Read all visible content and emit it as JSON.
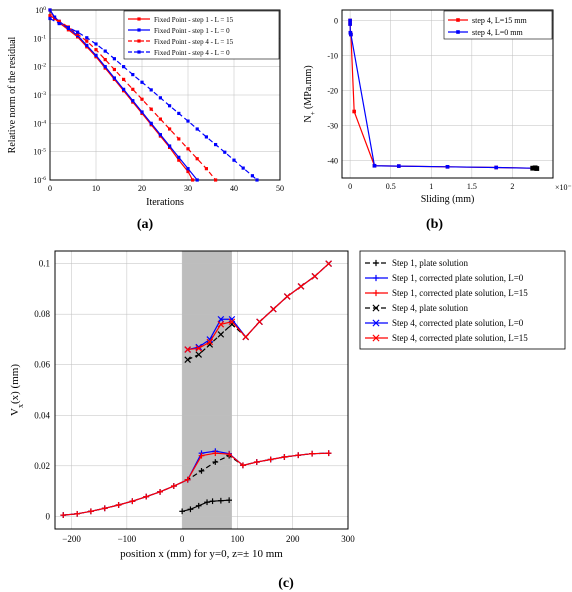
{
  "chart_a": {
    "type": "line",
    "xlabel": "Iterations",
    "ylabel": "Relative norm of the residual",
    "xlim": [
      0,
      50
    ],
    "ylim_exp": [
      -6,
      0
    ],
    "xtick_step": 10,
    "grid_color": "#bfbfbf",
    "border_color": "#000000",
    "background_color": "#ffffff",
    "label_fontsize": 10,
    "tick_fontsize": 8,
    "legend_fontsize": 7,
    "legend_pos": "top-right",
    "series": [
      {
        "label": "Fixed Point - step 1 - L = 15",
        "color": "#ff0000",
        "dash": "solid",
        "marker": "square",
        "points": [
          [
            0,
            0
          ],
          [
            1,
            -0.3
          ],
          [
            2,
            -0.45
          ],
          [
            4,
            -0.7
          ],
          [
            6,
            -0.95
          ],
          [
            8,
            -1.3
          ],
          [
            10,
            -1.65
          ],
          [
            12,
            -2.05
          ],
          [
            14,
            -2.45
          ],
          [
            16,
            -2.85
          ],
          [
            18,
            -3.25
          ],
          [
            20,
            -3.65
          ],
          [
            22,
            -4.05
          ],
          [
            24,
            -4.45
          ],
          [
            26,
            -4.85
          ],
          [
            28,
            -5.3
          ],
          [
            30,
            -5.7
          ],
          [
            31,
            -6.0
          ]
        ]
      },
      {
        "label": "Fixed Point - step 1 - L = 0",
        "color": "#0000ff",
        "dash": "solid",
        "marker": "square",
        "points": [
          [
            0,
            0
          ],
          [
            1,
            -0.25
          ],
          [
            2,
            -0.4
          ],
          [
            4,
            -0.65
          ],
          [
            6,
            -0.9
          ],
          [
            8,
            -1.25
          ],
          [
            10,
            -1.6
          ],
          [
            12,
            -2.0
          ],
          [
            14,
            -2.4
          ],
          [
            16,
            -2.8
          ],
          [
            18,
            -3.2
          ],
          [
            20,
            -3.6
          ],
          [
            22,
            -4.0
          ],
          [
            24,
            -4.4
          ],
          [
            26,
            -4.8
          ],
          [
            28,
            -5.2
          ],
          [
            30,
            -5.6
          ],
          [
            32,
            -6.0
          ]
        ]
      },
      {
        "label": "Fixed Point - step 4 - L = 15",
        "color": "#ff0000",
        "dash": "dashed",
        "marker": "square",
        "points": [
          [
            0,
            -0.2
          ],
          [
            2,
            -0.4
          ],
          [
            4,
            -0.6
          ],
          [
            6,
            -0.85
          ],
          [
            8,
            -1.1
          ],
          [
            10,
            -1.4
          ],
          [
            12,
            -1.75
          ],
          [
            14,
            -2.1
          ],
          [
            16,
            -2.45
          ],
          [
            18,
            -2.8
          ],
          [
            20,
            -3.15
          ],
          [
            22,
            -3.5
          ],
          [
            24,
            -3.85
          ],
          [
            26,
            -4.2
          ],
          [
            28,
            -4.55
          ],
          [
            30,
            -4.9
          ],
          [
            32,
            -5.25
          ],
          [
            34,
            -5.6
          ],
          [
            36,
            -6.0
          ]
        ]
      },
      {
        "label": "Fixed Point - step 4 - L = 0",
        "color": "#0000ff",
        "dash": "dashed",
        "marker": "square",
        "points": [
          [
            0,
            -0.3
          ],
          [
            2,
            -0.48
          ],
          [
            4,
            -0.62
          ],
          [
            6,
            -0.78
          ],
          [
            8,
            -0.98
          ],
          [
            10,
            -1.2
          ],
          [
            12,
            -1.45
          ],
          [
            14,
            -1.72
          ],
          [
            16,
            -2.0
          ],
          [
            18,
            -2.28
          ],
          [
            20,
            -2.55
          ],
          [
            22,
            -2.82
          ],
          [
            24,
            -3.1
          ],
          [
            26,
            -3.38
          ],
          [
            28,
            -3.65
          ],
          [
            30,
            -3.92
          ],
          [
            32,
            -4.2
          ],
          [
            34,
            -4.48
          ],
          [
            36,
            -4.75
          ],
          [
            38,
            -5.02
          ],
          [
            40,
            -5.3
          ],
          [
            42,
            -5.58
          ],
          [
            44,
            -5.85
          ],
          [
            45,
            -6.0
          ]
        ]
      }
    ]
  },
  "chart_b": {
    "type": "line",
    "xlabel": "Sliding (mm)",
    "ylabel": "N_+ (MPa.mm)",
    "xlim": [
      -0.1,
      2.5
    ],
    "xscale": 0.01,
    "ylim": [
      -45,
      3
    ],
    "xticks": [
      0,
      0.5,
      1,
      1.5,
      2
    ],
    "yticks": [
      0,
      -10,
      -20,
      -30,
      -40
    ],
    "x_scale_label": "×10⁻²",
    "grid_color": "#bfbfbf",
    "border_color": "#000000",
    "background_color": "#ffffff",
    "label_fontsize": 10,
    "legend_fontsize": 8,
    "legend_pos": "top-right",
    "series": [
      {
        "label": "step 4, L=15 mm",
        "color": "#ff0000",
        "dash": "solid",
        "marker": "square",
        "points": [
          [
            0,
            0
          ],
          [
            0.0,
            -1
          ],
          [
            0.003,
            -3.5
          ],
          [
            0.01,
            -4
          ],
          [
            0.05,
            -26
          ],
          [
            0.3,
            -41.5
          ],
          [
            0.6,
            -41.6
          ],
          [
            1.2,
            -41.8
          ],
          [
            1.8,
            -42
          ],
          [
            2.25,
            -42.2
          ]
        ]
      },
      {
        "label": "step 4, L=0 mm",
        "color": "#0000ff",
        "dash": "solid",
        "marker": "square",
        "points": [
          [
            0,
            0
          ],
          [
            0.0,
            -1
          ],
          [
            0.003,
            -3.5
          ],
          [
            0.01,
            -4
          ],
          [
            0.3,
            -41.5
          ],
          [
            0.6,
            -41.6
          ],
          [
            1.2,
            -41.8
          ],
          [
            1.8,
            -42
          ],
          [
            2.25,
            -42.2
          ]
        ]
      }
    ],
    "end_markers": [
      [
        2.25,
        -42.2
      ],
      [
        2.28,
        -42.1
      ],
      [
        2.3,
        -42.3
      ]
    ]
  },
  "chart_c": {
    "type": "line",
    "xlabel": "position x (mm) for y=0, z=± 10 mm",
    "ylabel": "V_x(x)   (mm)",
    "xlim": [
      -230,
      300
    ],
    "ylim": [
      -0.005,
      0.105
    ],
    "xticks": [
      -200,
      -100,
      0,
      100,
      200,
      300
    ],
    "yticks": [
      0,
      0.02,
      0.04,
      0.06,
      0.08,
      0.1
    ],
    "grid_color": "#bfbfbf",
    "border_color": "#000000",
    "background_color": "#ffffff",
    "highlight_xrange": [
      0,
      90
    ],
    "highlight_color": "#bdbdbd",
    "label_fontsize": 11,
    "series_lower": [
      {
        "name": "step1_plate",
        "color": "#000000",
        "dash": "dashed",
        "marker": "plus",
        "points": [
          [
            -215,
            0.0005
          ],
          [
            -190,
            0.001
          ],
          [
            -165,
            0.002
          ],
          [
            -140,
            0.0032
          ],
          [
            -115,
            0.0045
          ],
          [
            -90,
            0.006
          ],
          [
            -65,
            0.0078
          ],
          [
            -40,
            0.0097
          ],
          [
            -15,
            0.012
          ],
          [
            10,
            0.0145
          ],
          [
            35,
            0.018
          ],
          [
            60,
            0.0215
          ],
          [
            85,
            0.024
          ],
          [
            110,
            0.0202
          ],
          [
            135,
            0.0215
          ],
          [
            160,
            0.0225
          ],
          [
            185,
            0.0235
          ],
          [
            210,
            0.0242
          ],
          [
            235,
            0.0248
          ],
          [
            265,
            0.025
          ]
        ]
      },
      {
        "name": "step1_L0",
        "color": "#0000ff",
        "dash": "solid",
        "marker": "plus",
        "points": [
          [
            -215,
            0.0005
          ],
          [
            -190,
            0.001
          ],
          [
            -165,
            0.002
          ],
          [
            -140,
            0.0032
          ],
          [
            -115,
            0.0045
          ],
          [
            -90,
            0.006
          ],
          [
            -65,
            0.0078
          ],
          [
            -40,
            0.0097
          ],
          [
            -15,
            0.012
          ],
          [
            10,
            0.0145
          ],
          [
            35,
            0.025
          ],
          [
            60,
            0.0258
          ],
          [
            85,
            0.0248
          ],
          [
            110,
            0.0202
          ],
          [
            135,
            0.0215
          ],
          [
            160,
            0.0225
          ],
          [
            185,
            0.0235
          ],
          [
            210,
            0.0242
          ],
          [
            235,
            0.0248
          ],
          [
            265,
            0.025
          ]
        ]
      },
      {
        "name": "step1_L15",
        "color": "#ff0000",
        "dash": "solid",
        "marker": "plus",
        "points": [
          [
            -215,
            0.0005
          ],
          [
            -190,
            0.001
          ],
          [
            -165,
            0.002
          ],
          [
            -140,
            0.0032
          ],
          [
            -115,
            0.0045
          ],
          [
            -90,
            0.006
          ],
          [
            -65,
            0.0078
          ],
          [
            -40,
            0.0097
          ],
          [
            -15,
            0.012
          ],
          [
            10,
            0.0145
          ],
          [
            35,
            0.024
          ],
          [
            60,
            0.025
          ],
          [
            85,
            0.0246
          ],
          [
            110,
            0.0202
          ],
          [
            135,
            0.0215
          ],
          [
            160,
            0.0225
          ],
          [
            185,
            0.0235
          ],
          [
            210,
            0.0242
          ],
          [
            235,
            0.0248
          ],
          [
            265,
            0.025
          ]
        ]
      },
      {
        "name": "step1_inner_black",
        "color": "#000000",
        "dash": "solid",
        "marker": "plus",
        "points": [
          [
            0,
            0.002
          ],
          [
            15,
            0.0028
          ],
          [
            30,
            0.0042
          ],
          [
            45,
            0.0056
          ],
          [
            55,
            0.006
          ],
          [
            70,
            0.0062
          ],
          [
            85,
            0.0064
          ]
        ]
      }
    ],
    "series_upper": [
      {
        "name": "step4_plate",
        "color": "#000000",
        "dash": "dashed",
        "marker": "cross",
        "points": [
          [
            10,
            0.062
          ],
          [
            30,
            0.064
          ],
          [
            50,
            0.068
          ],
          [
            70,
            0.072
          ],
          [
            90,
            0.076
          ],
          [
            115,
            0.071
          ],
          [
            140,
            0.077
          ],
          [
            165,
            0.082
          ],
          [
            190,
            0.087
          ],
          [
            215,
            0.091
          ],
          [
            240,
            0.095
          ],
          [
            265,
            0.1
          ]
        ]
      },
      {
        "name": "step4_L0",
        "color": "#0000ff",
        "dash": "solid",
        "marker": "cross",
        "points": [
          [
            10,
            0.066
          ],
          [
            30,
            0.067
          ],
          [
            50,
            0.07
          ],
          [
            70,
            0.078
          ],
          [
            90,
            0.078
          ],
          [
            115,
            0.071
          ],
          [
            140,
            0.077
          ],
          [
            165,
            0.082
          ],
          [
            190,
            0.087
          ],
          [
            215,
            0.091
          ],
          [
            240,
            0.095
          ],
          [
            265,
            0.1
          ]
        ]
      },
      {
        "name": "step4_L15",
        "color": "#ff0000",
        "dash": "solid",
        "marker": "cross",
        "points": [
          [
            10,
            0.066
          ],
          [
            30,
            0.0665
          ],
          [
            50,
            0.069
          ],
          [
            70,
            0.076
          ],
          [
            90,
            0.077
          ],
          [
            115,
            0.071
          ],
          [
            140,
            0.077
          ],
          [
            165,
            0.082
          ],
          [
            190,
            0.087
          ],
          [
            215,
            0.091
          ],
          [
            240,
            0.095
          ],
          [
            265,
            0.1
          ]
        ]
      }
    ],
    "legend": [
      {
        "label": "Step 1, plate solution",
        "color": "#000000",
        "dash": "dashed",
        "marker": "plus"
      },
      {
        "label": "Step 1, corrected plate solution, L=0",
        "color": "#0000ff",
        "dash": "solid",
        "marker": "plus"
      },
      {
        "label": "Step 1, corrected plate solution, L=15",
        "color": "#ff0000",
        "dash": "solid",
        "marker": "plus"
      },
      {
        "label": "Step 4, plate solution",
        "color": "#000000",
        "dash": "dashed",
        "marker": "cross"
      },
      {
        "label": "Step 4, corrected plate solution, L=0",
        "color": "#0000ff",
        "dash": "solid",
        "marker": "cross"
      },
      {
        "label": "Step 4, corrected plate solution, L=15",
        "color": "#ff0000",
        "dash": "solid",
        "marker": "cross"
      }
    ],
    "legend_fontsize": 9
  },
  "captions": {
    "a": "(a)",
    "b": "(b)",
    "c": "(c)"
  }
}
